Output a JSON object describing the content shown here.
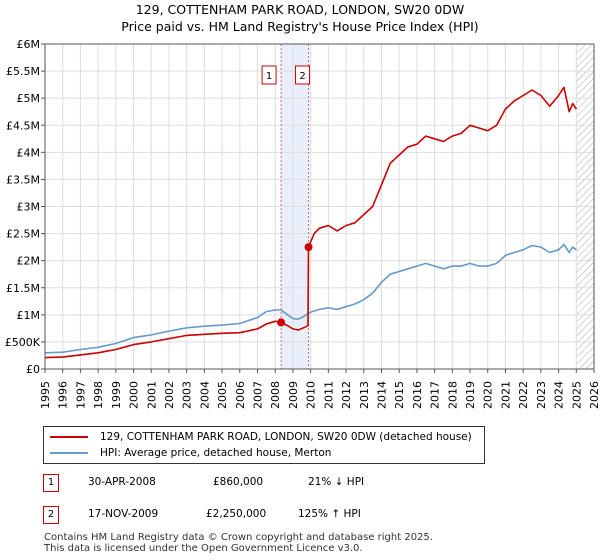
{
  "title_line1": "129, COTTENHAM PARK ROAD, LONDON, SW20 0DW",
  "title_line2": "Price paid vs. HM Land Registry's House Price Index (HPI)",
  "colors": {
    "property": "#cc0000",
    "hpi": "#6699cc",
    "shade": "#e8eefa"
  },
  "chart_data": {
    "type": "line",
    "title": "Price paid vs. HM Land Registry's House Price Index (HPI)",
    "xlabel": "",
    "ylabel": "",
    "xlim": [
      1995,
      2026
    ],
    "ylim": [
      0,
      6000000
    ],
    "yticks": [
      0,
      500000,
      1000000,
      1500000,
      2000000,
      2500000,
      3000000,
      3500000,
      4000000,
      4500000,
      5000000,
      5500000,
      6000000
    ],
    "ytick_labels": [
      "£0",
      "£500K",
      "£1M",
      "£1.5M",
      "£2M",
      "£2.5M",
      "£3M",
      "£3.5M",
      "£4M",
      "£4.5M",
      "£5M",
      "£5.5M",
      "£6M"
    ],
    "xticks": [
      "1995",
      "1996",
      "1997",
      "1998",
      "1999",
      "2000",
      "2001",
      "2002",
      "2003",
      "2004",
      "2005",
      "2006",
      "2007",
      "2008",
      "2009",
      "2010",
      "2011",
      "2012",
      "2013",
      "2014",
      "2015",
      "2016",
      "2017",
      "2018",
      "2019",
      "2020",
      "2021",
      "2022",
      "2023",
      "2024",
      "2025",
      "2026"
    ],
    "grid": true,
    "shaded_region": [
      2008.33,
      2009.88
    ],
    "hatched_from": 2025.0,
    "series": [
      {
        "name": "129, COTTENHAM PARK ROAD, LONDON, SW20 0DW (detached house)",
        "color": "#cc0000",
        "x": [
          1995.0,
          1996.0,
          1997.0,
          1998.0,
          1999.0,
          2000.0,
          2001.0,
          2002.0,
          2003.0,
          2004.0,
          2005.0,
          2006.0,
          2007.0,
          2007.5,
          2008.0,
          2008.33,
          2008.7,
          2009.0,
          2009.3,
          2009.6,
          2009.85,
          2009.88,
          2010.2,
          2010.5,
          2011.0,
          2011.5,
          2012.0,
          2012.5,
          2013.0,
          2013.5,
          2014.0,
          2014.5,
          2015.0,
          2015.5,
          2016.0,
          2016.5,
          2017.0,
          2017.5,
          2018.0,
          2018.5,
          2019.0,
          2019.5,
          2020.0,
          2020.5,
          2021.0,
          2021.5,
          2022.0,
          2022.5,
          2023.0,
          2023.5,
          2024.0,
          2024.3,
          2024.6,
          2024.8,
          2025.0
        ],
        "y": [
          210000,
          220000,
          260000,
          300000,
          360000,
          450000,
          500000,
          560000,
          620000,
          640000,
          660000,
          670000,
          740000,
          830000,
          880000,
          860000,
          800000,
          740000,
          720000,
          760000,
          800000,
          2250000,
          2500000,
          2600000,
          2650000,
          2550000,
          2650000,
          2700000,
          2850000,
          3000000,
          3400000,
          3800000,
          3950000,
          4100000,
          4150000,
          4300000,
          4250000,
          4200000,
          4300000,
          4350000,
          4500000,
          4450000,
          4400000,
          4500000,
          4800000,
          4950000,
          5050000,
          5150000,
          5050000,
          4850000,
          5050000,
          5200000,
          4750000,
          4900000,
          4800000
        ]
      },
      {
        "name": "HPI: Average price, detached house, Merton",
        "color": "#6699cc",
        "x": [
          1995.0,
          1996.0,
          1997.0,
          1998.0,
          1999.0,
          2000.0,
          2001.0,
          2002.0,
          2003.0,
          2004.0,
          2005.0,
          2006.0,
          2007.0,
          2007.5,
          2008.0,
          2008.33,
          2008.7,
          2009.0,
          2009.3,
          2009.6,
          2010.0,
          2010.5,
          2011.0,
          2011.5,
          2012.0,
          2012.5,
          2013.0,
          2013.5,
          2014.0,
          2014.5,
          2015.0,
          2015.5,
          2016.0,
          2016.5,
          2017.0,
          2017.5,
          2018.0,
          2018.5,
          2019.0,
          2019.5,
          2020.0,
          2020.5,
          2021.0,
          2021.5,
          2022.0,
          2022.5,
          2023.0,
          2023.5,
          2024.0,
          2024.3,
          2024.6,
          2024.8,
          2025.0
        ],
        "y": [
          300000,
          310000,
          360000,
          400000,
          470000,
          580000,
          630000,
          700000,
          760000,
          790000,
          810000,
          840000,
          950000,
          1060000,
          1090000,
          1090000,
          1000000,
          930000,
          920000,
          970000,
          1050000,
          1100000,
          1130000,
          1100000,
          1150000,
          1200000,
          1280000,
          1400000,
          1600000,
          1750000,
          1800000,
          1850000,
          1900000,
          1950000,
          1900000,
          1850000,
          1900000,
          1900000,
          1950000,
          1900000,
          1900000,
          1950000,
          2100000,
          2150000,
          2200000,
          2280000,
          2250000,
          2150000,
          2200000,
          2300000,
          2150000,
          2250000,
          2200000
        ]
      }
    ],
    "annotations": [
      {
        "label": "1",
        "x": 2008.33,
        "y": 860000
      },
      {
        "label": "2",
        "x": 2009.88,
        "y": 2250000
      }
    ]
  },
  "legend": {
    "items": [
      "129, COTTENHAM PARK ROAD, LONDON, SW20 0DW (detached house)",
      "HPI: Average price, detached house, Merton"
    ]
  },
  "transactions": [
    {
      "num": "1",
      "date": "30-APR-2008",
      "price": "£860,000",
      "hpi": "21% ↓ HPI"
    },
    {
      "num": "2",
      "date": "17-NOV-2009",
      "price": "£2,250,000",
      "hpi": "125% ↑ HPI"
    }
  ],
  "footer": {
    "line1": "Contains HM Land Registry data © Crown copyright and database right 2025.",
    "line2": "This data is licensed under the Open Government Licence v3.0."
  }
}
